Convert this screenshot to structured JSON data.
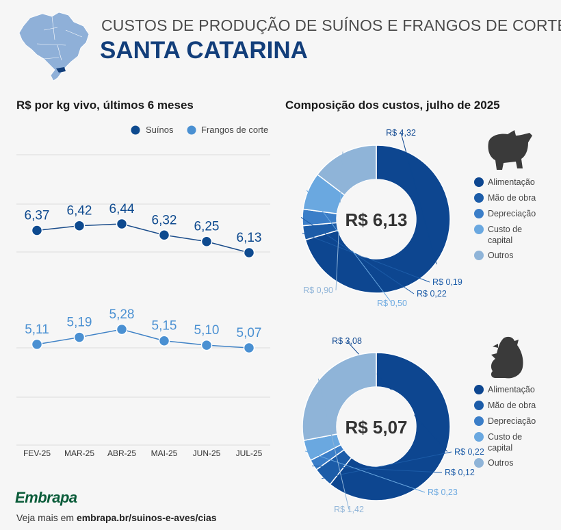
{
  "header": {
    "subtitle": "CUSTOS DE PRODUÇÃO DE SUÍNOS E FRANGOS DE CORTE",
    "title": "SANTA CATARINA",
    "map_icon": "brazil-map-icon"
  },
  "colors": {
    "suinos": "#0e4a8f",
    "frangos": "#4a90d2",
    "alimentacao": "#0d4690",
    "mao_de_obra": "#1c5ca8",
    "depreciacao": "#3b7ec8",
    "custo_capital": "#6aa8e0",
    "outros": "#8fb4d8"
  },
  "chart_data": [
    {
      "type": "line",
      "title": "R$ por kg vivo, últimos 6 meses",
      "categories": [
        "FEV-25",
        "MAR-25",
        "ABR-25",
        "MAI-25",
        "JUN-25",
        "JUL-25"
      ],
      "series": [
        {
          "name": "Suínos",
          "values": [
            6.37,
            6.42,
            6.44,
            6.32,
            6.25,
            6.13
          ],
          "labels": [
            "6,37",
            "6,42",
            "6,44",
            "6,32",
            "6,25",
            "6,13"
          ]
        },
        {
          "name": "Frangos de corte",
          "values": [
            5.11,
            5.19,
            5.28,
            5.15,
            5.1,
            5.07
          ],
          "labels": [
            "5,11",
            "5,19",
            "5,28",
            "5,15",
            "5,10",
            "5,07"
          ]
        }
      ],
      "legend": [
        "Suínos",
        "Frangos de corte"
      ],
      "xlabel": "",
      "ylabel": ""
    },
    {
      "type": "pie",
      "donut": true,
      "title": "Composição dos custos, julho de 2025",
      "subject": "Suínos",
      "icon": "pig-icon",
      "center_label": "R$ 6,13",
      "categories": [
        "Alimentação",
        "Mão de obra",
        "Depreciação",
        "Custo de capital",
        "Outros"
      ],
      "values": [
        4.32,
        0.19,
        0.22,
        0.5,
        0.9
      ],
      "labels": [
        "R$ 4,32",
        "R$ 0,19",
        "R$ 0,22",
        "R$ 0,50",
        "R$ 0,90"
      ]
    },
    {
      "type": "pie",
      "donut": true,
      "title": "Composição dos custos, julho de 2025",
      "subject": "Frangos de corte",
      "icon": "chicken-icon",
      "center_label": "R$ 5,07",
      "categories": [
        "Alimentação",
        "Mão de obra",
        "Depreciação",
        "Custo de capital",
        "Outros"
      ],
      "values": [
        3.08,
        0.22,
        0.12,
        0.23,
        1.42
      ],
      "labels": [
        "R$ 3,08",
        "R$ 0,22",
        "R$ 0,12",
        "R$ 0,23",
        "R$ 1,42"
      ]
    }
  ],
  "line_chart": {
    "title": "R$ por kg vivo, últimos 6 meses",
    "legend_suinos": "Suínos",
    "legend_frangos": "Frangos de corte"
  },
  "donut_section": {
    "title": "Composição dos custos, julho de 2025",
    "legend_labels": [
      "Alimentação",
      "Mão de obra",
      "Depreciação",
      "Custo de capital",
      "Outros"
    ]
  },
  "footer": {
    "logo": "Embrapa",
    "prefix": "Veja mais em ",
    "link": "embrapa.br/suinos-e-aves/cias"
  }
}
